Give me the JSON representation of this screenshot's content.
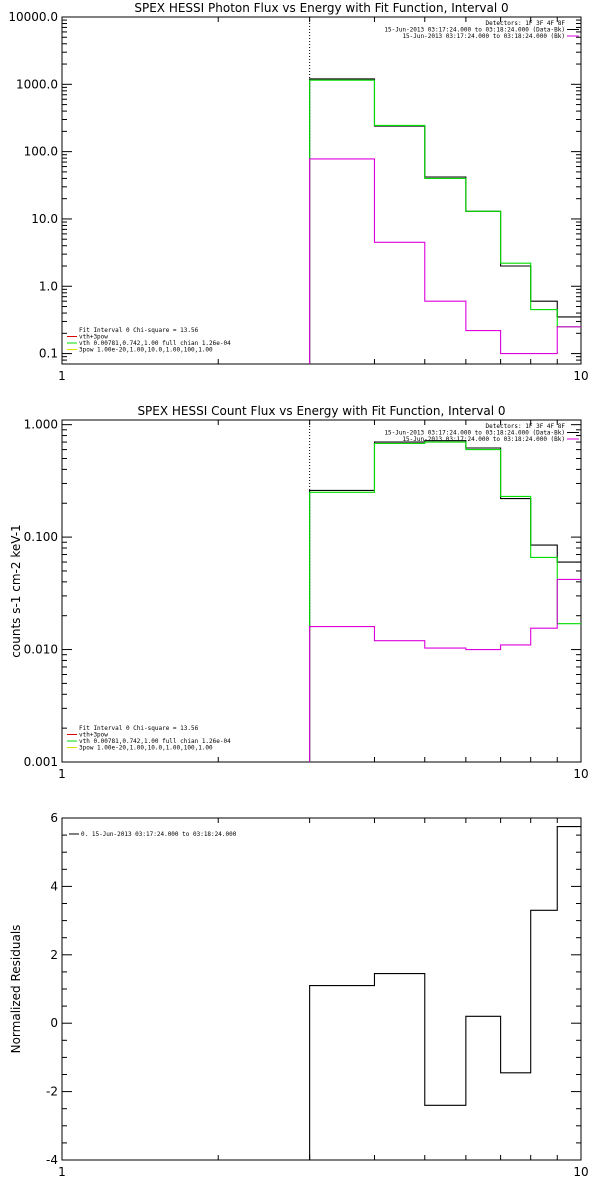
{
  "chart_data": [
    {
      "type": "line",
      "title": "SPEX HESSI Photon Flux vs Energy with Fit Function, Interval 0",
      "xlabel": "",
      "ylabel": "",
      "xscale": "log",
      "yscale": "log",
      "xlim": [
        1,
        10
      ],
      "ylim": [
        0.07,
        10000
      ],
      "x_ticks": [
        1,
        10
      ],
      "x_tick_labels": [
        "1",
        "10"
      ],
      "y_ticks": [
        0.1,
        1,
        10,
        100,
        1000,
        10000
      ],
      "y_tick_labels": [
        "0.1",
        "1.0",
        "10.0",
        "100.0",
        "1000.0",
        "10000.0"
      ],
      "vline_x": 3.0,
      "bin_edges": [
        3.0,
        4.0,
        5.0,
        6.0,
        7.0,
        8.0,
        9.0,
        10.0
      ],
      "series": [
        {
          "color": "#000000",
          "values": [
            1200,
            240,
            42,
            13,
            2.0,
            0.6,
            0.35
          ]
        },
        {
          "color": "#00dd00",
          "values": [
            1150,
            245,
            40,
            13,
            2.2,
            0.45,
            0.25
          ]
        },
        {
          "color": "#dd00dd",
          "values": [
            78,
            4.5,
            0.6,
            0.22,
            0.1,
            0.1,
            0.25
          ]
        }
      ],
      "legend_tr": {
        "lines": [
          {
            "text": "Detectors: 1F 3F 4F 8F",
            "color": ""
          },
          {
            "text": "15-Jun-2013 03:17:24.000 to 03:18:24.000 (Data-Bk)",
            "color": "#000000"
          },
          {
            "text": "15-Jun-2013 03:17:24.000 to 03:18:24.000 (Bk)",
            "color": "#dd00dd"
          }
        ]
      },
      "legend_bl": {
        "lines": [
          {
            "text": "Fit Interval 0   Chi-square = 13.56",
            "color": ""
          },
          {
            "text": "vth+3pow",
            "color": "#dd0000"
          },
          {
            "text": "vth 0.00781,0.742,1.00   full chian 1.26e-04",
            "color": "#00dd00"
          },
          {
            "text": "3pow 1.00e-20,1.00,10.0,1.00,100,1.00",
            "color": "#dddd00"
          }
        ]
      }
    },
    {
      "type": "line",
      "title": "SPEX HESSI Count Flux vs Energy with Fit Function, Interval 0",
      "xlabel": "",
      "ylabel": "counts s-1 cm-2 keV-1",
      "xscale": "log",
      "yscale": "log",
      "xlim": [
        1,
        10
      ],
      "ylim": [
        0.001,
        1.1
      ],
      "x_ticks": [
        1,
        10
      ],
      "x_tick_labels": [
        "1",
        "10"
      ],
      "y_ticks": [
        0.001,
        0.01,
        0.1,
        1
      ],
      "y_tick_labels": [
        "0.001",
        "0.010",
        "0.100",
        "1.000"
      ],
      "vline_x": 3.0,
      "bin_edges": [
        3.0,
        4.0,
        5.0,
        6.0,
        7.0,
        8.0,
        9.0,
        10.0
      ],
      "series": [
        {
          "color": "#000000",
          "values": [
            0.26,
            0.7,
            0.72,
            0.62,
            0.22,
            0.085,
            0.06
          ]
        },
        {
          "color": "#00dd00",
          "values": [
            0.25,
            0.68,
            0.7,
            0.6,
            0.23,
            0.066,
            0.017
          ]
        },
        {
          "color": "#dd00dd",
          "values": [
            0.016,
            0.012,
            0.0103,
            0.01,
            0.011,
            0.0155,
            0.042
          ]
        }
      ],
      "legend_tr": {
        "lines": [
          {
            "text": "Detectors: 1F 3F 4F 8F",
            "color": ""
          },
          {
            "text": "15-Jun-2013 03:17:24.000 to 03:18:24.000 (Data-Bk)",
            "color": "#000000"
          },
          {
            "text": "15-Jun-2013 03:17:24.000 to 03:18:24.000 (Bk)",
            "color": "#dd00dd"
          }
        ]
      },
      "legend_bl": {
        "lines": [
          {
            "text": "Fit Interval 0   Chi-square = 13.56",
            "color": ""
          },
          {
            "text": "vth+3pow",
            "color": "#dd0000"
          },
          {
            "text": "vth 0.00781,0.742,1.00   full chian 1.26e-04",
            "color": "#00dd00"
          },
          {
            "text": "3pow 1.00e-20,1.00,10.0,1.00,100,1.00",
            "color": "#dddd00"
          }
        ]
      }
    },
    {
      "type": "line",
      "title": "",
      "xlabel": "",
      "ylabel": "Normalized Residuals",
      "xscale": "log",
      "yscale": "linear",
      "xlim": [
        1,
        10
      ],
      "ylim": [
        -4,
        6
      ],
      "x_ticks": [
        1,
        10
      ],
      "x_tick_labels": [
        "1",
        "10"
      ],
      "y_ticks": [
        -4,
        -2,
        0,
        2,
        4,
        6
      ],
      "y_tick_labels": [
        "-4",
        "-2",
        "0",
        "2",
        "4",
        "6"
      ],
      "bin_edges": [
        3.0,
        4.0,
        5.0,
        6.0,
        7.0,
        8.0,
        9.0,
        10.0
      ],
      "series": [
        {
          "color": "#000000",
          "values": [
            1.1,
            1.45,
            -2.4,
            0.2,
            -1.45,
            3.3,
            5.75
          ]
        }
      ],
      "legend_tl": {
        "lines": [
          {
            "text": "0. 15-Jun-2013 03:17:24.000 to 03:18:24.000",
            "color": "#000000"
          }
        ]
      }
    }
  ]
}
